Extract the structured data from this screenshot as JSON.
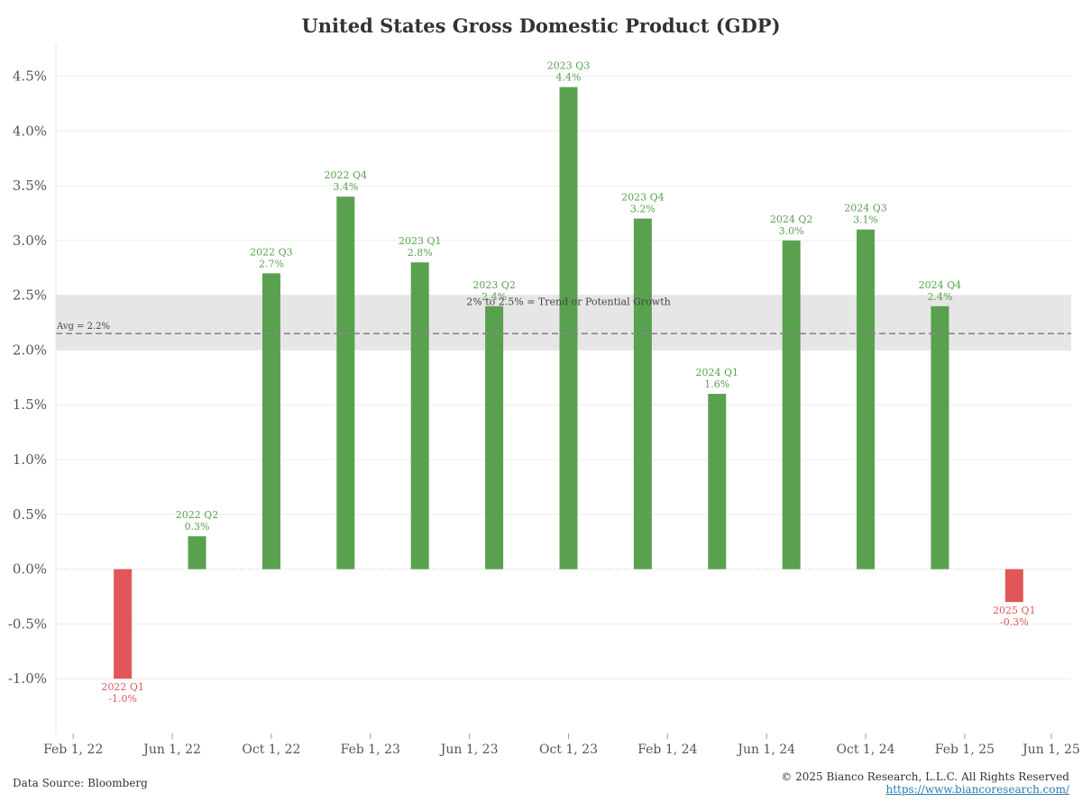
{
  "title": "United States Gross Domestic Product (GDP)",
  "chart_data": {
    "type": "bar",
    "title": "United States Gross Domestic Product (GDP)",
    "xlabel": "",
    "ylabel": "",
    "ylim": [
      -1.5,
      4.8
    ],
    "yticks": [
      -1.0,
      -0.5,
      0.0,
      0.5,
      1.0,
      1.5,
      2.0,
      2.5,
      3.0,
      3.5,
      4.0,
      4.5
    ],
    "ytick_labels": [
      "-1.0%",
      "-0.5%",
      "0.0%",
      "0.5%",
      "1.0%",
      "1.5%",
      "2.0%",
      "2.5%",
      "3.0%",
      "3.5%",
      "4.0%",
      "4.5%"
    ],
    "xlim_months": [
      -0.7,
      40.3
    ],
    "xticks": [
      {
        "label": "Feb 1, 22",
        "month": 0
      },
      {
        "label": "Jun 1, 22",
        "month": 4
      },
      {
        "label": "Oct 1, 22",
        "month": 8
      },
      {
        "label": "Feb 1, 23",
        "month": 12
      },
      {
        "label": "Jun 1, 23",
        "month": 16
      },
      {
        "label": "Oct 1, 23",
        "month": 20
      },
      {
        "label": "Feb 1, 24",
        "month": 24
      },
      {
        "label": "Jun 1, 24",
        "month": 28
      },
      {
        "label": "Oct 1, 24",
        "month": 32
      },
      {
        "label": "Feb 1, 25",
        "month": 36
      },
      {
        "label": "Jun 1, 25",
        "month": 39.5
      }
    ],
    "bars": [
      {
        "quarter": "2022 Q1",
        "value": -1.0,
        "label": "-1.0%",
        "month": 2
      },
      {
        "quarter": "2022 Q2",
        "value": 0.3,
        "label": "0.3%",
        "month": 5
      },
      {
        "quarter": "2022 Q3",
        "value": 2.7,
        "label": "2.7%",
        "month": 8
      },
      {
        "quarter": "2022 Q4",
        "value": 3.4,
        "label": "3.4%",
        "month": 11
      },
      {
        "quarter": "2023 Q1",
        "value": 2.8,
        "label": "2.8%",
        "month": 14
      },
      {
        "quarter": "2023 Q2",
        "value": 2.4,
        "label": "2.4%",
        "month": 17
      },
      {
        "quarter": "2023 Q3",
        "value": 4.4,
        "label": "4.4%",
        "month": 20
      },
      {
        "quarter": "2023 Q4",
        "value": 3.2,
        "label": "3.2%",
        "month": 23
      },
      {
        "quarter": "2024 Q1",
        "value": 1.6,
        "label": "1.6%",
        "month": 26
      },
      {
        "quarter": "2024 Q2",
        "value": 3.0,
        "label": "3.0%",
        "month": 29
      },
      {
        "quarter": "2024 Q3",
        "value": 3.1,
        "label": "3.1%",
        "month": 32
      },
      {
        "quarter": "2024 Q4",
        "value": 2.4,
        "label": "2.4%",
        "month": 35
      },
      {
        "quarter": "2025 Q1",
        "value": -0.3,
        "label": "-0.3%",
        "month": 38
      }
    ],
    "band": {
      "from": 2.0,
      "to": 2.5,
      "label": "2% to 2.5% = Trend or Potential Growth"
    },
    "average": {
      "value": 2.15,
      "label": "Avg = 2.2%"
    },
    "colors": {
      "positive": "#59a14f",
      "negative": "#e15759",
      "band": "#e6e6e6",
      "avg_line": "#888888",
      "grid": "#ececec"
    }
  },
  "footer": {
    "source": "Data Source: Bloomberg",
    "copyright": "© 2025 Bianco Research, L.L.C. All Rights Reserved",
    "url": "https://www.biancoresearch.com/"
  }
}
